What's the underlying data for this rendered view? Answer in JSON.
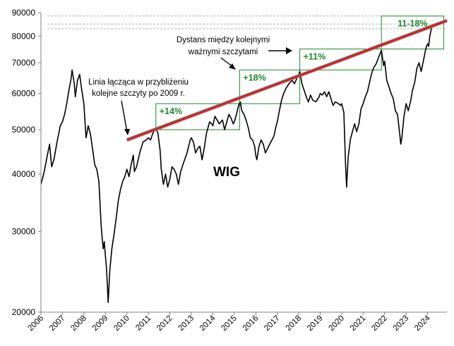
{
  "chart_data": {
    "type": "line",
    "title": "WIG",
    "xlabel": "",
    "ylabel": "",
    "y_scale": "log",
    "ylim": [
      20000,
      90000
    ],
    "xlim": [
      2006,
      2024.9
    ],
    "y_ticks": [
      20000,
      30000,
      40000,
      50000,
      60000,
      70000,
      80000,
      90000
    ],
    "x_ticks": [
      "2006",
      "2007",
      "2008",
      "2009",
      "2010",
      "2011",
      "2012",
      "2013",
      "2014",
      "2015",
      "2016",
      "2017",
      "2018",
      "2019",
      "2020",
      "2021",
      "2022",
      "2023",
      "2024"
    ],
    "series": [
      {
        "name": "WIG",
        "color": "#000000",
        "points": [
          [
            2006.0,
            38000
          ],
          [
            2006.15,
            40500
          ],
          [
            2006.3,
            44000
          ],
          [
            2006.4,
            46500
          ],
          [
            2006.5,
            41500
          ],
          [
            2006.6,
            43000
          ],
          [
            2006.75,
            47000
          ],
          [
            2006.9,
            51000
          ],
          [
            2007.0,
            52000
          ],
          [
            2007.1,
            54000
          ],
          [
            2007.2,
            57000
          ],
          [
            2007.3,
            61000
          ],
          [
            2007.4,
            64500
          ],
          [
            2007.45,
            67500
          ],
          [
            2007.55,
            63000
          ],
          [
            2007.6,
            59000
          ],
          [
            2007.7,
            64000
          ],
          [
            2007.8,
            66000
          ],
          [
            2007.9,
            61000
          ],
          [
            2008.0,
            57000
          ],
          [
            2008.05,
            52000
          ],
          [
            2008.1,
            48000
          ],
          [
            2008.2,
            51000
          ],
          [
            2008.3,
            49000
          ],
          [
            2008.4,
            45500
          ],
          [
            2008.5,
            42000
          ],
          [
            2008.6,
            41000
          ],
          [
            2008.7,
            38500
          ],
          [
            2008.8,
            31000
          ],
          [
            2008.85,
            29000
          ],
          [
            2008.9,
            27500
          ],
          [
            2008.95,
            28500
          ],
          [
            2009.0,
            26500
          ],
          [
            2009.05,
            25000
          ],
          [
            2009.1,
            22500
          ],
          [
            2009.13,
            21000
          ],
          [
            2009.2,
            24500
          ],
          [
            2009.3,
            27500
          ],
          [
            2009.4,
            29500
          ],
          [
            2009.5,
            32000
          ],
          [
            2009.6,
            35000
          ],
          [
            2009.7,
            37000
          ],
          [
            2009.8,
            38500
          ],
          [
            2009.9,
            39500
          ],
          [
            2010.0,
            41000
          ],
          [
            2010.1,
            39500
          ],
          [
            2010.2,
            42000
          ],
          [
            2010.3,
            44000
          ],
          [
            2010.35,
            40500
          ],
          [
            2010.45,
            41500
          ],
          [
            2010.6,
            44500
          ],
          [
            2010.75,
            47000
          ],
          [
            2010.9,
            47500
          ],
          [
            2011.0,
            48000
          ],
          [
            2011.1,
            47500
          ],
          [
            2011.2,
            49000
          ],
          [
            2011.35,
            50500
          ],
          [
            2011.45,
            49000
          ],
          [
            2011.55,
            45000
          ],
          [
            2011.6,
            41000
          ],
          [
            2011.7,
            38000
          ],
          [
            2011.8,
            40000
          ],
          [
            2011.9,
            37500
          ],
          [
            2012.0,
            39000
          ],
          [
            2012.1,
            41500
          ],
          [
            2012.2,
            41000
          ],
          [
            2012.3,
            40000
          ],
          [
            2012.4,
            38000
          ],
          [
            2012.5,
            40500
          ],
          [
            2012.65,
            42500
          ],
          [
            2012.8,
            44500
          ],
          [
            2012.95,
            47500
          ],
          [
            2013.0,
            48000
          ],
          [
            2013.1,
            47000
          ],
          [
            2013.2,
            44500
          ],
          [
            2013.3,
            45500
          ],
          [
            2013.4,
            46000
          ],
          [
            2013.5,
            43000
          ],
          [
            2013.6,
            45500
          ],
          [
            2013.7,
            49000
          ],
          [
            2013.85,
            52000
          ],
          [
            2013.95,
            51500
          ],
          [
            2014.0,
            51000
          ],
          [
            2014.1,
            53500
          ],
          [
            2014.2,
            52500
          ],
          [
            2014.3,
            51500
          ],
          [
            2014.45,
            52500
          ],
          [
            2014.55,
            50000
          ],
          [
            2014.65,
            52000
          ],
          [
            2014.75,
            54000
          ],
          [
            2014.85,
            53000
          ],
          [
            2014.95,
            51500
          ],
          [
            2015.0,
            52000
          ],
          [
            2015.1,
            54000
          ],
          [
            2015.2,
            56500
          ],
          [
            2015.28,
            57500
          ],
          [
            2015.35,
            55000
          ],
          [
            2015.45,
            54000
          ],
          [
            2015.55,
            52500
          ],
          [
            2015.65,
            50500
          ],
          [
            2015.75,
            48000
          ],
          [
            2015.85,
            47500
          ],
          [
            2015.95,
            46000
          ],
          [
            2016.0,
            44000
          ],
          [
            2016.05,
            43000
          ],
          [
            2016.15,
            46000
          ],
          [
            2016.25,
            47500
          ],
          [
            2016.35,
            46500
          ],
          [
            2016.45,
            44500
          ],
          [
            2016.55,
            45500
          ],
          [
            2016.65,
            46500
          ],
          [
            2016.75,
            47500
          ],
          [
            2016.85,
            48500
          ],
          [
            2016.95,
            51000
          ],
          [
            2017.0,
            52000
          ],
          [
            2017.1,
            55000
          ],
          [
            2017.2,
            58000
          ],
          [
            2017.3,
            60000
          ],
          [
            2017.4,
            61500
          ],
          [
            2017.5,
            62500
          ],
          [
            2017.6,
            63500
          ],
          [
            2017.7,
            64000
          ],
          [
            2017.8,
            63000
          ],
          [
            2017.9,
            64500
          ],
          [
            2018.0,
            66000
          ],
          [
            2018.05,
            67000
          ],
          [
            2018.15,
            63000
          ],
          [
            2018.25,
            61000
          ],
          [
            2018.35,
            59000
          ],
          [
            2018.45,
            57500
          ],
          [
            2018.55,
            59500
          ],
          [
            2018.65,
            58000
          ],
          [
            2018.8,
            57500
          ],
          [
            2018.95,
            59000
          ],
          [
            2019.0,
            60000
          ],
          [
            2019.1,
            59500
          ],
          [
            2019.2,
            60500
          ],
          [
            2019.3,
            59000
          ],
          [
            2019.4,
            60500
          ],
          [
            2019.5,
            58500
          ],
          [
            2019.6,
            56500
          ],
          [
            2019.7,
            57500
          ],
          [
            2019.85,
            57000
          ],
          [
            2019.95,
            56500
          ],
          [
            2020.0,
            57000
          ],
          [
            2020.1,
            54500
          ],
          [
            2020.18,
            42000
          ],
          [
            2020.23,
            37500
          ],
          [
            2020.3,
            43500
          ],
          [
            2020.4,
            47500
          ],
          [
            2020.5,
            49500
          ],
          [
            2020.6,
            51500
          ],
          [
            2020.7,
            49500
          ],
          [
            2020.8,
            51500
          ],
          [
            2020.9,
            55500
          ],
          [
            2021.0,
            57000
          ],
          [
            2021.1,
            59000
          ],
          [
            2021.2,
            60500
          ],
          [
            2021.3,
            63500
          ],
          [
            2021.4,
            66500
          ],
          [
            2021.5,
            68500
          ],
          [
            2021.6,
            69500
          ],
          [
            2021.7,
            71500
          ],
          [
            2021.8,
            73500
          ],
          [
            2021.85,
            74500
          ],
          [
            2021.95,
            69000
          ],
          [
            2022.0,
            70500
          ],
          [
            2022.1,
            64000
          ],
          [
            2022.2,
            62000
          ],
          [
            2022.3,
            60000
          ],
          [
            2022.4,
            58500
          ],
          [
            2022.5,
            55000
          ],
          [
            2022.6,
            54000
          ],
          [
            2022.7,
            49000
          ],
          [
            2022.75,
            46500
          ],
          [
            2022.8,
            48000
          ],
          [
            2022.9,
            53500
          ],
          [
            2023.0,
            57000
          ],
          [
            2023.1,
            55000
          ],
          [
            2023.2,
            57500
          ],
          [
            2023.3,
            61000
          ],
          [
            2023.4,
            63500
          ],
          [
            2023.5,
            68000
          ],
          [
            2023.6,
            70000
          ],
          [
            2023.7,
            67000
          ],
          [
            2023.8,
            70500
          ],
          [
            2023.9,
            74500
          ],
          [
            2023.95,
            76000
          ],
          [
            2024.0,
            77000
          ],
          [
            2024.05,
            76000
          ],
          [
            2024.1,
            80000
          ],
          [
            2024.15,
            82000
          ],
          [
            2024.18,
            83500
          ]
        ]
      },
      {
        "name": "Linia łącząca szczyty",
        "color": "#d62020",
        "points": [
          [
            2010.0,
            47500
          ],
          [
            2024.9,
            86500
          ]
        ]
      }
    ],
    "annotations": [
      {
        "text_lines": [
          "Linia łącząca w przybliżeniu",
          "kolejne szczyty po 2009 r."
        ]
      },
      {
        "text_lines": [
          "Dystans między kolejnymi",
          "ważnymi szczytami"
        ]
      }
    ],
    "boxes": [
      {
        "label": "+14%",
        "x0": 2011.35,
        "x1": 2015.25,
        "y0": 50000,
        "y1": 57000
      },
      {
        "label": "+18%",
        "x0": 2015.25,
        "x1": 2018.05,
        "y0": 57000,
        "y1": 67500
      },
      {
        "label": "+11%",
        "x0": 2018.05,
        "x1": 2021.85,
        "y0": 67500,
        "y1": 75000
      },
      {
        "label": "11-18%",
        "x0": 2021.85,
        "x1": 2024.75,
        "y0": 75000,
        "y1": 88500
      }
    ],
    "reference_lines": [
      83000,
      85000,
      88500
    ]
  }
}
